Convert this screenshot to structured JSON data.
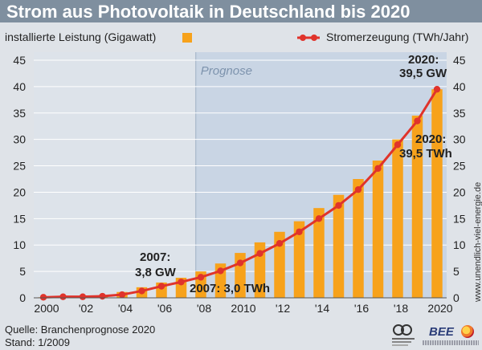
{
  "header": {
    "title": "Strom aus Photovoltaik in Deutschland bis 2020"
  },
  "footer": {
    "source": "Quelle: Branchenprognose 2020",
    "stand": "Stand: 1/2009",
    "bee_logo": "BEE",
    "website": "www.unendlich-viel-energie.de"
  },
  "colors": {
    "bar": "#f7a21b",
    "line": "#e0332b",
    "forecast_band": "#c9d5e4",
    "history_band": "#dde3ea",
    "grid": "#ffffff",
    "header_bg": "#7f8f9f"
  },
  "chart_data": {
    "type": "bar",
    "legend": {
      "bars_label": "installierte Leistung (Gigawatt)",
      "line_label": "Stromerzeugung (TWh/Jahr)",
      "placement": "top"
    },
    "forecast_label": "Prognose",
    "forecast_start_year": 2008,
    "x": [
      2000,
      2001,
      2002,
      2003,
      2004,
      2005,
      2006,
      2007,
      2008,
      2009,
      2010,
      2011,
      2012,
      2013,
      2014,
      2015,
      2016,
      2017,
      2018,
      2019,
      2020
    ],
    "x_tick_labels": [
      "2000",
      "'02",
      "'04",
      "'06",
      "'08",
      "2010",
      "'12",
      "'14",
      "'16",
      "'18",
      "2020"
    ],
    "y_ticks": [
      0,
      5,
      10,
      15,
      20,
      25,
      30,
      35,
      40,
      45
    ],
    "ylim": [
      0,
      45
    ],
    "grid": true,
    "series": [
      {
        "name": "installierte Leistung (Gigawatt)",
        "kind": "bar",
        "axis": "left",
        "values": [
          0.1,
          0.2,
          0.3,
          0.4,
          1.1,
          2.0,
          2.9,
          3.8,
          5.0,
          6.5,
          8.5,
          10.5,
          12.5,
          14.5,
          17.0,
          19.5,
          22.5,
          26.0,
          30.0,
          34.5,
          39.5
        ]
      },
      {
        "name": "Stromerzeugung (TWh/Jahr)",
        "kind": "line",
        "axis": "right",
        "values": [
          0.1,
          0.2,
          0.2,
          0.3,
          0.6,
          1.3,
          2.2,
          3.0,
          3.9,
          5.1,
          6.6,
          8.4,
          10.3,
          12.5,
          15.0,
          17.5,
          20.5,
          24.5,
          29.0,
          33.5,
          39.5
        ]
      }
    ],
    "annotations": [
      {
        "line1": "2007:",
        "line2": "3,8 GW"
      },
      {
        "line1": "2007: 3,0 TWh"
      },
      {
        "line1": "2020:",
        "line2": "39,5 GW"
      },
      {
        "line1": "2020:",
        "line2": "39,5 TWh"
      }
    ]
  }
}
